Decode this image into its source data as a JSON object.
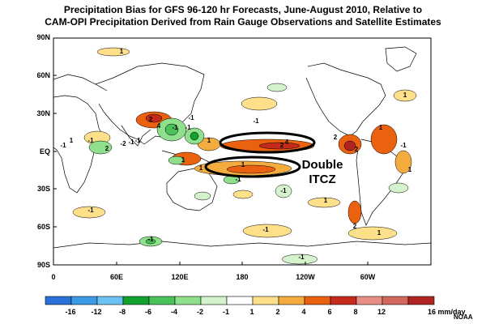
{
  "title": {
    "line1": "Precipitation Bias for GFS 96-120 hr Forecasts, June-August 2010, Relative to",
    "line2": "CAM-OPI Precipitation Derived from Rain Gauge Observations and Satellite Estimates"
  },
  "map": {
    "lat_labels": [
      "90N",
      "60N",
      "30N",
      "EQ",
      "30S",
      "60S",
      "90S"
    ],
    "lon_labels": [
      "0",
      "60E",
      "120E",
      "180",
      "120W",
      "60W"
    ],
    "annotation": {
      "line1": "Double",
      "line2": "ITCZ"
    },
    "contour_labels": [
      "-1",
      "1",
      "-1",
      "2",
      "-2",
      "-1",
      "4",
      "2",
      "-1",
      "1",
      "-1",
      "-1",
      "4",
      "2",
      "1",
      "-1",
      "-1",
      "1",
      "2",
      "2",
      "1",
      "-1",
      "1",
      "-1",
      "1",
      "-1",
      "-1",
      "1",
      "2",
      "-1",
      "1",
      "1",
      "-1",
      "-1",
      "1"
    ]
  },
  "colorbar": {
    "labels": [
      "-16",
      "-12",
      "-8",
      "-6",
      "-4",
      "-2",
      "-1",
      "1",
      "2",
      "4",
      "6",
      "8",
      "12",
      "16 mm/day"
    ],
    "colors": [
      "#2a72d9",
      "#3c9be6",
      "#6cc2f2",
      "#12a02e",
      "#4cc25a",
      "#8ee08c",
      "#d4f2cc",
      "#ffffff",
      "#ffe08a",
      "#f5ac3e",
      "#ea6210",
      "#c62a1a",
      "#e88e84",
      "#d4685e",
      "#b02424"
    ]
  },
  "credit": "NOAA"
}
